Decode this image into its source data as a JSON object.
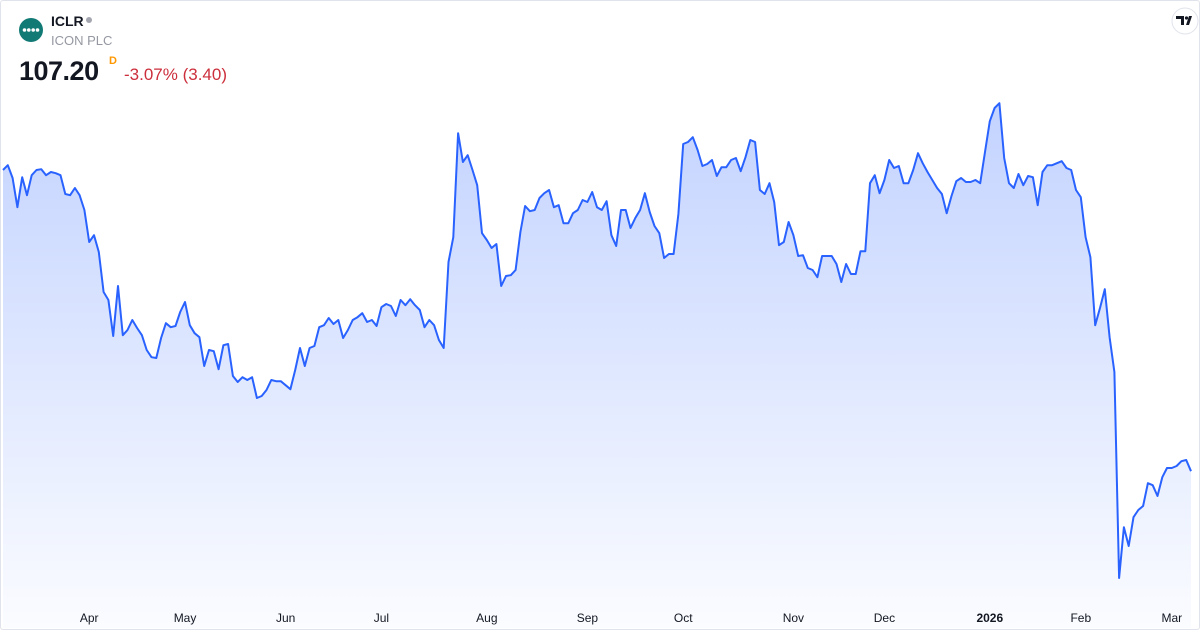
{
  "header": {
    "symbol": "ICLR",
    "company": "ICON PLC",
    "price": "107.20",
    "price_flag": "D",
    "change": "-3.07% (3.40)"
  },
  "chart_data": {
    "type": "area",
    "color": "#2962ff",
    "categories": [
      null,
      null,
      null,
      null,
      null,
      null,
      null,
      null,
      null,
      null,
      null,
      null,
      null,
      null,
      null,
      null,
      null,
      null,
      "Apr",
      null,
      null,
      null,
      null,
      null,
      null,
      null,
      null,
      null,
      null,
      null,
      null,
      null,
      null,
      null,
      null,
      null,
      null,
      null,
      "May",
      null,
      null,
      null,
      null,
      null,
      null,
      null,
      null,
      null,
      null,
      null,
      null,
      null,
      null,
      null,
      null,
      null,
      null,
      null,
      null,
      "Jun",
      null,
      null,
      null,
      null,
      null,
      null,
      null,
      null,
      null,
      null,
      null,
      null,
      null,
      null,
      null,
      null,
      null,
      null,
      null,
      "Jul",
      null,
      null,
      null,
      null,
      null,
      null,
      null,
      null,
      null,
      null,
      null,
      null,
      null,
      null,
      null,
      null,
      null,
      null,
      null,
      null,
      null,
      "Aug",
      null,
      null,
      null,
      null,
      null,
      null,
      null,
      null,
      null,
      null,
      null,
      null,
      null,
      null,
      null,
      null,
      null,
      null,
      null,
      null,
      "Sep",
      null,
      null,
      null,
      null,
      null,
      null,
      null,
      null,
      null,
      null,
      null,
      null,
      null,
      null,
      null,
      null,
      null,
      null,
      null,
      "Oct",
      null,
      null,
      null,
      null,
      null,
      null,
      null,
      null,
      null,
      null,
      null,
      null,
      null,
      null,
      null,
      null,
      null,
      null,
      null,
      null,
      null,
      null,
      "Nov",
      null,
      null,
      null,
      null,
      null,
      null,
      null,
      null,
      null,
      null,
      null,
      null,
      null,
      null,
      null,
      null,
      null,
      null,
      "Dec",
      null,
      null,
      null,
      null,
      null,
      null,
      null,
      null,
      null,
      null,
      null,
      null,
      null,
      null,
      null,
      null,
      null,
      null,
      null,
      null,
      null,
      "2026",
      null,
      null,
      null,
      null,
      null,
      null,
      null,
      null,
      null,
      null,
      null,
      null,
      null,
      null,
      null,
      null,
      null,
      null,
      "Feb",
      null,
      null,
      null,
      null,
      null,
      null,
      null,
      null,
      null,
      null,
      null,
      null,
      null,
      null,
      null,
      null,
      null,
      null,
      "Mar",
      null,
      null,
      null,
      null
    ],
    "values": [
      182.5,
      183.7,
      180.5,
      173.2,
      180.7,
      176.2,
      181.2,
      182.5,
      182.7,
      181.2,
      182.0,
      181.7,
      181.2,
      176.5,
      176.2,
      178.0,
      176.2,
      172.5,
      164.5,
      166.2,
      162.0,
      152.0,
      150.0,
      141.0,
      153.5,
      141.2,
      142.5,
      145.0,
      143.0,
      141.2,
      137.5,
      135.7,
      135.5,
      140.5,
      144.2,
      143.2,
      143.5,
      147.0,
      149.5,
      143.7,
      141.7,
      140.7,
      133.5,
      137.5,
      137.2,
      132.7,
      138.7,
      139.0,
      131.0,
      129.5,
      130.7,
      130.0,
      130.7,
      125.5,
      126.0,
      127.5,
      130.0,
      129.7,
      129.7,
      128.7,
      127.7,
      132.5,
      138.0,
      133.5,
      138.0,
      138.5,
      143.2,
      143.7,
      145.5,
      144.0,
      145.0,
      140.5,
      142.5,
      145.0,
      145.7,
      146.7,
      144.5,
      145.0,
      143.5,
      148.2,
      149.0,
      148.5,
      146.0,
      150.0,
      148.7,
      150.2,
      148.7,
      147.5,
      143.2,
      145.0,
      143.7,
      140.0,
      138.0,
      159.5,
      165.7,
      191.7,
      184.5,
      186.2,
      182.5,
      178.7,
      166.7,
      165.0,
      163.0,
      164.0,
      153.5,
      156.0,
      156.2,
      157.5,
      167.0,
      173.5,
      172.2,
      172.5,
      175.5,
      176.7,
      177.5,
      173.2,
      173.7,
      169.2,
      169.2,
      171.7,
      172.5,
      175.0,
      174.5,
      177.0,
      173.2,
      172.5,
      174.7,
      166.2,
      163.5,
      172.5,
      172.5,
      168.0,
      170.5,
      172.5,
      176.7,
      172.0,
      168.5,
      166.7,
      160.5,
      161.5,
      161.5,
      171.5,
      189.0,
      189.5,
      190.7,
      187.5,
      183.5,
      184.0,
      185.0,
      181.0,
      183.2,
      183.2,
      185.0,
      185.5,
      182.2,
      185.7,
      190.0,
      189.5,
      177.5,
      176.5,
      179.2,
      174.5,
      163.7,
      164.5,
      169.5,
      166.2,
      161.0,
      161.2,
      158.0,
      157.5,
      155.7,
      161.0,
      161.0,
      161.0,
      159.0,
      154.5,
      159.0,
      156.5,
      156.5,
      162.2,
      162.2,
      179.2,
      181.2,
      176.7,
      180.0,
      185.0,
      183.0,
      183.5,
      179.2,
      179.2,
      182.5,
      186.7,
      184.2,
      182.0,
      180.0,
      178.0,
      176.5,
      171.7,
      176.0,
      179.7,
      180.5,
      179.5,
      179.5,
      180.0,
      179.2,
      187.0,
      194.7,
      198.0,
      199.2,
      185.5,
      179.2,
      178.0,
      181.5,
      178.7,
      181.0,
      180.7,
      173.7,
      182.0,
      183.7,
      183.7,
      184.2,
      184.7,
      183.0,
      182.5,
      177.5,
      175.7,
      165.7,
      160.7,
      143.7,
      148.0,
      152.7,
      140.7,
      132.0,
      80.5,
      93.2,
      88.5,
      95.7,
      97.5,
      98.5,
      104.2,
      103.7,
      101.0,
      105.7,
      108.0,
      108.0,
      108.5,
      109.7,
      110.0,
      107.2
    ],
    "ylim": [
      74,
      205
    ]
  }
}
